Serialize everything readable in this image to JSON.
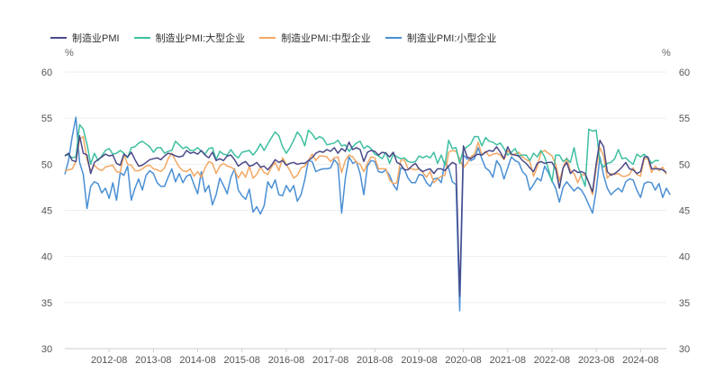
{
  "chart_data": {
    "type": "line",
    "title": "",
    "xlabel": "",
    "ylabel": "%",
    "ylabel_right": "%",
    "ylim": [
      30,
      60
    ],
    "y_ticks": [
      30,
      35,
      40,
      45,
      50,
      55,
      60
    ],
    "x_tick_labels": [
      "2012-08",
      "2013-08",
      "2014-08",
      "2015-08",
      "2016-08",
      "2017-08",
      "2018-08",
      "2019-08",
      "2020-08",
      "2021-08",
      "2022-08",
      "2023-08",
      "2024-08"
    ],
    "x_start": "2011-08",
    "grid": true,
    "legend_position": "top-left",
    "series": [
      {
        "name": "制造业PMI",
        "color": "#4a4a8a",
        "values": [
          50.9,
          51.2,
          50.4,
          50.3,
          53.1,
          51.2,
          51.0,
          49.0,
          50.2,
          50.5,
          50.8,
          51.1,
          50.9,
          51.0,
          50.1,
          49.9,
          51.1,
          50.8,
          51.3,
          50.5,
          49.8,
          49.9,
          50.2,
          50.5,
          50.6,
          50.7,
          50.5,
          50.9,
          51.2,
          51.1,
          50.9,
          50.8,
          50.9,
          51.5,
          51.2,
          51.3,
          51.1,
          51.5,
          51.0,
          50.7,
          51.3,
          50.4,
          50.6,
          50.4,
          50.9,
          51.0,
          50.5,
          49.8,
          50.1,
          50.3,
          49.8,
          49.9,
          50.2,
          49.7,
          49.8,
          49.4,
          49.9,
          50.5,
          50.2,
          50.4,
          49.9,
          50.1,
          50.2,
          50.0,
          50.1,
          50.1,
          50.4,
          50.7,
          51.2,
          51.4,
          51.3,
          51.6,
          51.4,
          51.8,
          51.2,
          51.7,
          51.4,
          52.4,
          51.6,
          51.8,
          51.6,
          50.3,
          51.3,
          51.5,
          51.4,
          51.0,
          51.3,
          51.2,
          50.8,
          51.3,
          50.2,
          50.0,
          49.4,
          49.4,
          49.8,
          50.1,
          49.5,
          49.2,
          49.4,
          49.5,
          49.0,
          49.5,
          49.5,
          49.3,
          49.8,
          50.2,
          50.0,
          35.7,
          52.0,
          50.8,
          50.6,
          50.9,
          51.1,
          51.0,
          51.3,
          51.5,
          51.4,
          51.9,
          51.3,
          50.6,
          51.9,
          51.1,
          51.0,
          50.9,
          50.4,
          50.1,
          49.6,
          49.2,
          50.1,
          50.3,
          50.1,
          50.2,
          50.2,
          49.5,
          47.4,
          49.6,
          50.2,
          49.0,
          49.4,
          49.1,
          49.2,
          49.0,
          48.0,
          47.0,
          50.1,
          52.6,
          51.9,
          49.2,
          48.8,
          49.0,
          49.3,
          49.7,
          50.2,
          49.5,
          49.4,
          49.0,
          49.2,
          50.8,
          50.8,
          49.5,
          49.5,
          49.5,
          49.4,
          49.1
        ]
      },
      {
        "name": "制造业PMI:大型企业",
        "color": "#3dbfa0",
        "values": [
          51.0,
          51.0,
          50.7,
          50.8,
          54.3,
          53.8,
          52.2,
          50.0,
          51.2,
          50.4,
          50.9,
          51.5,
          51.7,
          51.1,
          51.2,
          51.5,
          51.2,
          50.7,
          51.8,
          51.9,
          52.3,
          52.5,
          52.2,
          51.9,
          51.3,
          51.8,
          51.8,
          51.2,
          51.4,
          51.5,
          52.5,
          52.1,
          51.7,
          51.9,
          51.5,
          51.5,
          51.8,
          51.4,
          51.1,
          51.7,
          51.8,
          50.5,
          51.4,
          51.1,
          51.0,
          51.6,
          51.0,
          50.7,
          51.3,
          51.4,
          51.5,
          51.0,
          51.5,
          52.2,
          51.5,
          52.2,
          52.9,
          53.5,
          53.1,
          51.9,
          51.2,
          51.8,
          52.6,
          53.5,
          53.0,
          52.0,
          53.7,
          53.3,
          52.7,
          53.0,
          52.8,
          52.1,
          52.2,
          52.3,
          52.6,
          52.0,
          52.1,
          51.4,
          51.9,
          52.3,
          52.5,
          51.7,
          52.0,
          51.7,
          51.1,
          50.9,
          50.6,
          51.3,
          50.1,
          51.1,
          50.8,
          50.6,
          50.7,
          50.3,
          50.2,
          50.3,
          50.9,
          50.7,
          50.9,
          50.7,
          51.3,
          50.1,
          51.0,
          49.9,
          52.6,
          51.7,
          51.8,
          50.1,
          51.6,
          51.9,
          52.2,
          53.0,
          53.0,
          52.0,
          52.9,
          52.5,
          52.4,
          52.1,
          52.3,
          51.7,
          51.0,
          51.3,
          51.7,
          50.9,
          51.0,
          51.0,
          50.4,
          51.2,
          50.8,
          51.5,
          50.8,
          49.5,
          48.1,
          51.0,
          51.0,
          50.3,
          50.6,
          50.2,
          51.8,
          49.8,
          48.7,
          47.6,
          53.8,
          53.6,
          53.7,
          50.3,
          49.7,
          50.1,
          50.2,
          50.6,
          51.6,
          50.6,
          50.7,
          50.3,
          50.0,
          51.1,
          50.8,
          51.1,
          50.7,
          50.1,
          50.4,
          50.4
        ]
      },
      {
        "name": "制造业PMI:中型企业",
        "color": "#f2a864",
        "values": [
          49.3,
          49.4,
          49.5,
          50.3,
          52.7,
          53.0,
          50.5,
          49.3,
          49.9,
          49.5,
          49.3,
          49.7,
          49.8,
          49.9,
          49.2,
          49.1,
          51.1,
          50.0,
          49.9,
          49.3,
          49.3,
          49.5,
          49.8,
          49.9,
          49.5,
          49.4,
          49.2,
          49.6,
          50.6,
          51.2,
          50.4,
          49.7,
          49.3,
          49.2,
          49.5,
          48.7,
          49.2,
          48.6,
          49.6,
          50.3,
          50.1,
          49.0,
          49.8,
          50.1,
          49.8,
          49.7,
          49.4,
          48.5,
          49.2,
          48.6,
          49.8,
          48.5,
          48.9,
          49.7,
          49.1,
          48.9,
          49.7,
          50.2,
          49.3,
          50.7,
          50.0,
          49.3,
          48.5,
          48.8,
          49.6,
          49.8,
          50.4,
          51.1,
          50.4,
          50.9,
          50.9,
          50.8,
          50.3,
          50.7,
          50.8,
          49.1,
          50.4,
          51.0,
          50.8,
          50.2,
          50.0,
          49.2,
          50.1,
          50.8,
          50.7,
          49.5,
          49.5,
          49.5,
          48.3,
          47.9,
          48.0,
          50.4,
          50.5,
          49.5,
          49.5,
          49.4,
          49.5,
          49.1,
          48.6,
          49.2,
          48.0,
          48.4,
          48.7,
          48.8,
          51.3,
          51.5,
          51.4,
          50.6,
          49.6,
          50.1,
          50.8,
          51.1,
          52.4,
          51.0,
          51.4,
          50.9,
          51.1,
          51.2,
          51.0,
          50.5,
          51.5,
          51.0,
          51.1,
          51.3,
          50.8,
          50.5,
          50.3,
          48.7,
          49.7,
          51.3,
          51.5,
          51.2,
          50.9,
          50.0,
          48.2,
          49.6,
          50.7,
          49.3,
          49.0,
          48.0,
          48.9,
          48.8,
          48.0,
          46.7,
          49.6,
          51.8,
          50.9,
          48.5,
          49.0,
          48.9,
          49.0,
          48.7,
          48.7,
          48.9,
          49.6,
          48.9,
          48.7,
          50.6,
          50.6,
          49.1,
          49.8,
          49.3,
          49.7,
          48.9
        ]
      },
      {
        "name": "制造业PMI:小型企业",
        "color": "#4a8fd4",
        "values": [
          48.9,
          50.4,
          53.0,
          55.1,
          50.2,
          48.9,
          45.2,
          47.6,
          48.1,
          47.9,
          46.9,
          47.4,
          46.3,
          48.0,
          46.1,
          49.1,
          48.8,
          49.8,
          46.1,
          47.4,
          48.4,
          47.2,
          48.8,
          49.3,
          49.0,
          48.0,
          47.6,
          47.6,
          48.6,
          49.5,
          48.1,
          49.0,
          48.0,
          48.7,
          48.9,
          47.8,
          46.8,
          49.2,
          47.0,
          47.7,
          45.6,
          46.7,
          48.5,
          47.7,
          46.8,
          48.6,
          49.5,
          47.2,
          46.6,
          46.2,
          47.3,
          44.8,
          45.4,
          44.6,
          45.5,
          48.1,
          47.4,
          48.3,
          46.7,
          46.6,
          47.7,
          47.0,
          47.7,
          46.0,
          46.7,
          48.3,
          50.4,
          50.3,
          49.2,
          49.4,
          49.5,
          49.5,
          49.6,
          50.5,
          50.0,
          44.7,
          48.5,
          50.8,
          50.1,
          50.3,
          49.0,
          46.7,
          49.8,
          50.4,
          50.3,
          49.2,
          49.1,
          49.4,
          48.8,
          47.8,
          47.2,
          49.6,
          49.5,
          48.5,
          48.0,
          48.0,
          48.9,
          48.8,
          48.0,
          47.6,
          48.4,
          48.5,
          48.0,
          50.3,
          49.6,
          48.1,
          47.8,
          34.1,
          51.0,
          50.6,
          50.4,
          50.6,
          51.8,
          50.6,
          49.6,
          49.3,
          48.6,
          50.4,
          49.8,
          48.4,
          49.6,
          50.8,
          50.4,
          50.2,
          49.2,
          48.8,
          47.2,
          47.8,
          48.5,
          48.2,
          49.8,
          49.1,
          48.2,
          47.4,
          45.9,
          47.5,
          48.1,
          47.6,
          47.1,
          47.5,
          47.2,
          46.5,
          45.6,
          44.7,
          47.2,
          50.8,
          48.8,
          47.4,
          46.7,
          47.1,
          47.4,
          47.0,
          48.1,
          48.4,
          48.3,
          47.2,
          46.4,
          47.9,
          48.1,
          48.0,
          47.2,
          47.9,
          46.4,
          47.4,
          46.7
        ]
      }
    ]
  }
}
